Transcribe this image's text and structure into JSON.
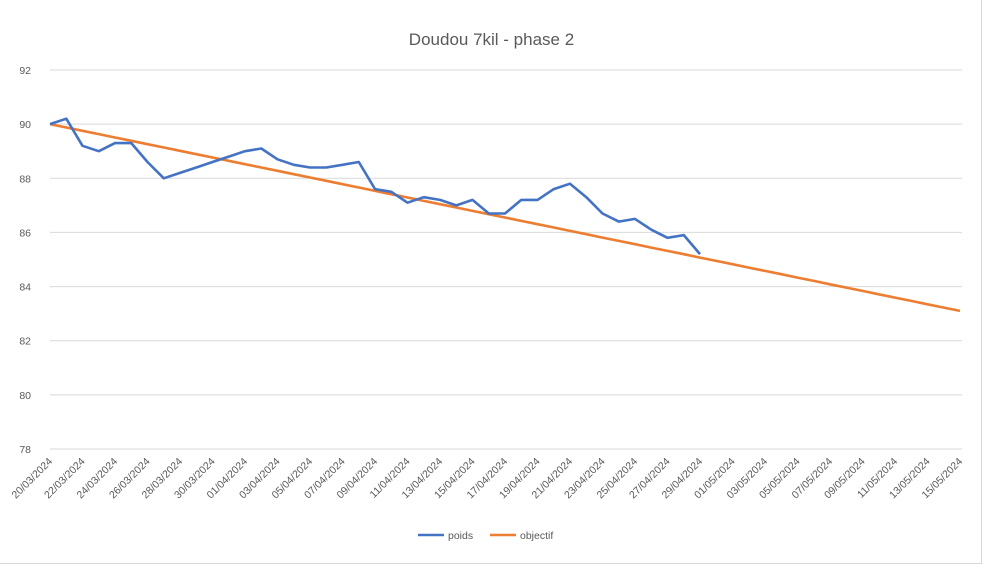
{
  "chart_data": {
    "type": "line",
    "title": "Doudou 7kil - phase 2",
    "xlabel": "",
    "ylabel": "",
    "ylim": [
      78,
      92
    ],
    "yticks": [
      78,
      80,
      82,
      84,
      86,
      88,
      90,
      92
    ],
    "grid": true,
    "legend_position": "bottom",
    "x_tick_labels": [
      "20/03/2024",
      "22/03/2024",
      "24/03/2024",
      "26/03/2024",
      "28/03/2024",
      "30/03/2024",
      "01/04/2024",
      "03/04/2024",
      "05/04/2024",
      "07/04/2024",
      "09/04/2024",
      "11/04/2024",
      "13/04/2024",
      "15/04/2024",
      "17/04/2024",
      "19/04/2024",
      "21/04/2024",
      "23/04/2024",
      "25/04/2024",
      "27/04/2024",
      "29/04/2024",
      "01/05/2024",
      "03/05/2024",
      "05/05/2024",
      "07/05/2024",
      "09/05/2024",
      "11/05/2024",
      "13/05/2024",
      "15/05/2024"
    ],
    "series": [
      {
        "name": "poids",
        "color": "#4472c4",
        "values": [
          90.0,
          90.2,
          89.2,
          89.0,
          89.3,
          89.3,
          88.6,
          88.0,
          88.2,
          88.4,
          88.6,
          88.8,
          89.0,
          89.1,
          88.7,
          88.5,
          88.4,
          88.4,
          88.5,
          88.6,
          87.6,
          87.5,
          87.1,
          87.3,
          87.2,
          87.0,
          87.2,
          86.7,
          86.7,
          87.2,
          87.2,
          87.6,
          87.8,
          87.3,
          86.7,
          86.4,
          86.5,
          86.1,
          85.8,
          85.9,
          85.2
        ]
      },
      {
        "name": "objectif",
        "color": "#ed7d31",
        "start": 90.0,
        "end": 83.1
      }
    ]
  }
}
